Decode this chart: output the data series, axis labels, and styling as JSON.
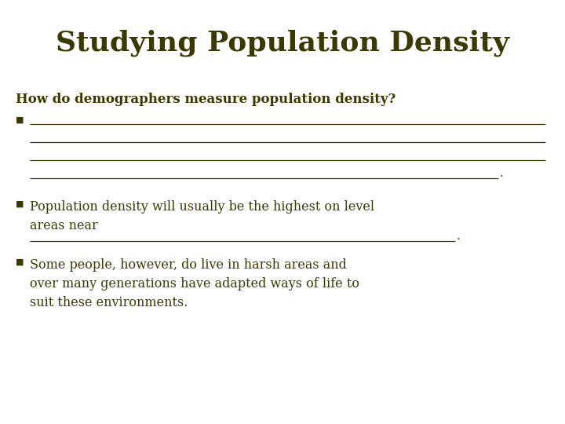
{
  "title": "Studying Population Density",
  "title_color": "#3a3a00",
  "title_fontsize": 26,
  "subtitle": "How do demographers measure population density?",
  "subtitle_color": "#3a3a00",
  "subtitle_fontsize": 12,
  "background_color": "#ffffff",
  "text_color": "#3a3a00",
  "bullet_color": "#3a3a00",
  "bullet2_text": "Population density will usually be the highest on level\nareas near",
  "bullet3_text": "Some people, however, do live in harsh areas and\nover many generations have adapted ways of life to\nsuit these environments.",
  "line_color": "#3a3a00",
  "body_fontsize": 11.5
}
